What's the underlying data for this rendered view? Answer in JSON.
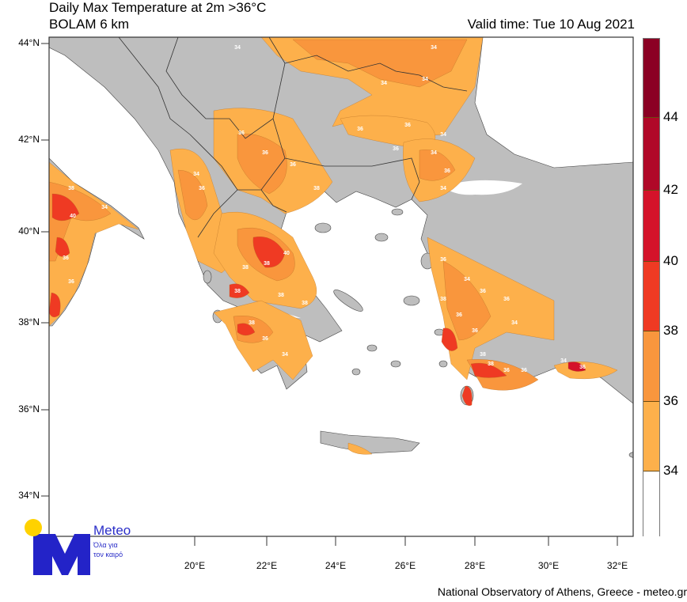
{
  "header": {
    "title": "Daily Max Temperature at 2m >36°C",
    "subtitle": "BOLAM 6 km",
    "valid_time": "Valid time: Tue 10 Aug 2021"
  },
  "map": {
    "region": "Greece / Aegean",
    "lat_labels": [
      "44°N",
      "42°N",
      "40°N",
      "38°N",
      "36°N",
      "34°N"
    ],
    "lon_labels": [
      "20°E",
      "22°E",
      "24°E",
      "26°E",
      "28°E",
      "30°E",
      "32°E"
    ],
    "land_color": "#bebebe",
    "sea_color": "#ffffff",
    "contour_labels": [
      "34",
      "34",
      "34",
      "34",
      "36",
      "36",
      "34",
      "36",
      "34",
      "36",
      "34",
      "36",
      "36",
      "36",
      "38",
      "34",
      "36",
      "40",
      "38",
      "38",
      "34",
      "36",
      "36",
      "38",
      "40",
      "38",
      "38",
      "38",
      "36",
      "38",
      "38",
      "36",
      "34",
      "36",
      "34",
      "36",
      "36",
      "38",
      "36",
      "34",
      "36",
      "38",
      "36",
      "36",
      "34",
      "38",
      "36"
    ]
  },
  "colorbar": {
    "labels": [
      "44",
      "42",
      "40",
      "38",
      "36",
      "34"
    ],
    "colors": [
      "#8b0024",
      "#b00828",
      "#d4132a",
      "#ef3a23",
      "#f9963d",
      "#fdb04b",
      "#ffffff"
    ]
  },
  "logo": {
    "name": "Meteo",
    "tagline_1": "Όλα για",
    "tagline_2": "τον καιρό",
    "sun_color": "#ffd200",
    "brand_color": "#2323c8"
  },
  "footer": "National Observatory of Athens, Greece - meteo.gr"
}
